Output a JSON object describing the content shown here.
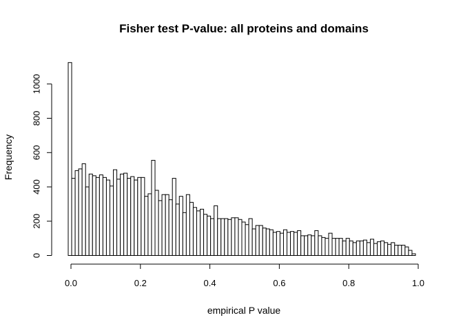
{
  "chart_data": {
    "type": "bar",
    "title": "Fisher test P-value: all proteins and domains",
    "xlabel": "empirical P value",
    "ylabel": "Frequency",
    "xlim": [
      0,
      1
    ],
    "ylim": [
      0,
      1100
    ],
    "bin_width": 0.01,
    "x_ticks": [
      "0.0",
      "0.2",
      "0.4",
      "0.6",
      "0.8",
      "1.0"
    ],
    "y_ticks": [
      "0",
      "200",
      "400",
      "600",
      "800",
      "1000"
    ],
    "values": [
      1125,
      450,
      495,
      505,
      535,
      400,
      475,
      465,
      455,
      470,
      455,
      440,
      405,
      500,
      445,
      475,
      480,
      450,
      460,
      440,
      455,
      455,
      345,
      360,
      555,
      380,
      320,
      355,
      355,
      325,
      450,
      300,
      345,
      250,
      355,
      310,
      280,
      260,
      270,
      240,
      230,
      215,
      290,
      215,
      215,
      215,
      210,
      220,
      220,
      210,
      195,
      180,
      215,
      155,
      175,
      175,
      160,
      155,
      150,
      135,
      140,
      130,
      150,
      135,
      140,
      135,
      145,
      115,
      115,
      120,
      115,
      145,
      115,
      105,
      100,
      130,
      100,
      100,
      100,
      85,
      100,
      85,
      75,
      85,
      85,
      90,
      75,
      95,
      70,
      80,
      85,
      75,
      65,
      75,
      60,
      60,
      60,
      50,
      30,
      10
    ],
    "grid": false,
    "legend": "none",
    "bar_fill": "#ffffff",
    "bar_stroke": "#000000"
  }
}
